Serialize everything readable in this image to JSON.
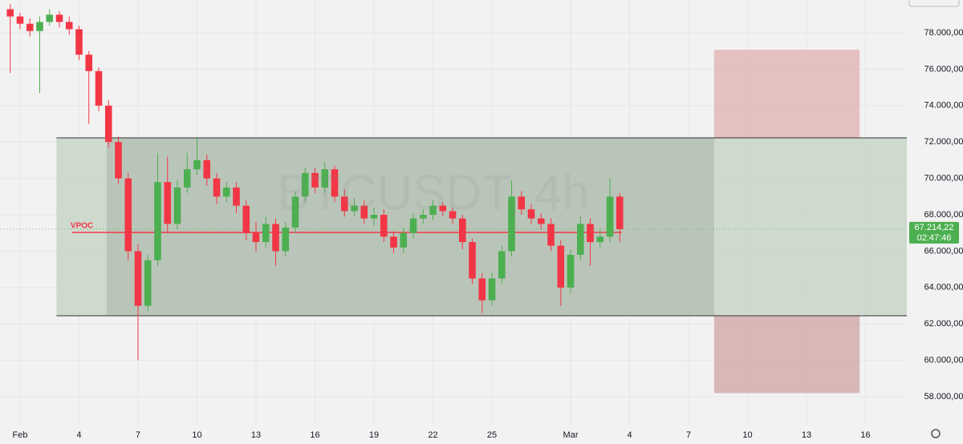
{
  "chart_data": {
    "type": "candlestick",
    "watermark": "BTCUSDT, 4h",
    "x": [
      -0.5,
      0,
      0.5,
      1,
      1.5,
      2,
      2.5,
      3,
      3.5,
      4,
      4.5,
      5,
      5.5,
      6,
      6.5,
      7,
      7.5,
      8,
      8.5,
      9,
      9.5,
      10,
      10.5,
      11,
      11.5,
      12,
      12.5,
      13,
      13.5,
      14,
      14.5,
      15,
      15.5,
      16,
      16.5,
      17,
      17.5,
      18,
      18.5,
      19,
      19.5,
      20,
      20.5,
      21,
      21.5,
      22,
      22.5,
      23,
      23.5,
      24,
      24.5,
      25,
      25.5,
      26,
      26.5,
      27,
      27.5,
      28,
      28.5,
      29,
      29.5,
      30,
      30.5
    ],
    "open": [
      79300,
      78900,
      78500,
      78100,
      78600,
      79000,
      78600,
      78200,
      76800,
      75900,
      74000,
      72000,
      70000,
      66000,
      63000,
      65500,
      69800,
      67500,
      69500,
      70500,
      71000,
      70000,
      69000,
      69500,
      68500,
      67000,
      66500,
      67500,
      66000,
      67300,
      69000,
      70300,
      69500,
      70500,
      69000,
      68200,
      68500,
      67800,
      68000,
      66800,
      66200,
      67000,
      67800,
      68000,
      68500,
      68200,
      67800,
      66500,
      64500,
      63300,
      64500,
      66000,
      69000,
      68300,
      67800,
      67500,
      66300,
      64000,
      65800,
      67500,
      66500,
      66800,
      69000
    ],
    "high": [
      79600,
      79100,
      78800,
      78900,
      79300,
      79200,
      78900,
      78400,
      77000,
      76100,
      74300,
      72300,
      70300,
      66400,
      65800,
      71400,
      71200,
      69900,
      71400,
      72200,
      71300,
      70300,
      69800,
      69800,
      68800,
      67600,
      67900,
      67800,
      67600,
      69300,
      70600,
      70600,
      70900,
      70700,
      69400,
      68900,
      68800,
      68400,
      68300,
      67100,
      67300,
      68100,
      68300,
      68800,
      68700,
      68400,
      68000,
      66700,
      64800,
      64800,
      66300,
      69900,
      69300,
      68600,
      68100,
      67800,
      66600,
      66100,
      67900,
      67800,
      67200,
      70000,
      69200
    ],
    "low": [
      75800,
      78200,
      77800,
      74700,
      78400,
      78300,
      77900,
      76500,
      73000,
      73700,
      71700,
      69700,
      65500,
      60000,
      62700,
      65200,
      67000,
      67200,
      69200,
      70200,
      69600,
      68600,
      68700,
      68100,
      66600,
      66000,
      66200,
      65200,
      65700,
      67000,
      68700,
      69200,
      69200,
      68700,
      67900,
      67900,
      67500,
      67400,
      66500,
      65900,
      65900,
      66700,
      67500,
      67700,
      67900,
      67500,
      66100,
      64200,
      62600,
      63000,
      64200,
      65700,
      68000,
      67500,
      67200,
      66000,
      63000,
      63700,
      65500,
      65200,
      66200,
      66500,
      66500
    ],
    "close": [
      78900,
      78500,
      78100,
      78600,
      79000,
      78600,
      78200,
      76800,
      75900,
      74000,
      72000,
      70000,
      66000,
      63000,
      65500,
      69800,
      67500,
      69500,
      70500,
      71000,
      70000,
      69000,
      69500,
      68500,
      67000,
      66500,
      67500,
      66000,
      67300,
      69000,
      70300,
      69500,
      70500,
      69000,
      68200,
      68500,
      67800,
      68000,
      66800,
      66200,
      67000,
      67800,
      68000,
      68500,
      68200,
      67800,
      66500,
      64500,
      63300,
      64500,
      66000,
      69000,
      68300,
      67800,
      67500,
      66300,
      64000,
      65800,
      67500,
      66500,
      66800,
      69000,
      67214
    ],
    "up_color": "#4caf50",
    "down_color": "#f23645",
    "xlim": [
      -1.02,
      45.1
    ],
    "ylim": [
      56460,
      79806
    ],
    "xticks": [
      {
        "value": 0,
        "label": "Feb"
      },
      {
        "value": 3,
        "label": "4"
      },
      {
        "value": 6,
        "label": "7"
      },
      {
        "value": 9,
        "label": "10"
      },
      {
        "value": 12,
        "label": "13"
      },
      {
        "value": 15,
        "label": "16"
      },
      {
        "value": 18,
        "label": "19"
      },
      {
        "value": 21,
        "label": "22"
      },
      {
        "value": 24,
        "label": "25"
      },
      {
        "value": 28,
        "label": "Mar"
      },
      {
        "value": 31,
        "label": "4"
      },
      {
        "value": 34,
        "label": "7"
      },
      {
        "value": 37,
        "label": "10"
      },
      {
        "value": 40,
        "label": "13"
      },
      {
        "value": 43,
        "label": "16"
      }
    ],
    "yticks": [
      {
        "value": 58000,
        "label": "58.000,00"
      },
      {
        "value": 60000,
        "label": "60.000,00"
      },
      {
        "value": 62000,
        "label": "62.000,00"
      },
      {
        "value": 64000,
        "label": "64.000,00"
      },
      {
        "value": 66000,
        "label": "66.000,00"
      },
      {
        "value": 68000,
        "label": "68.000,00"
      },
      {
        "value": 70000,
        "label": "70.000,00"
      },
      {
        "value": 72000,
        "label": "72.000,00"
      },
      {
        "value": 74000,
        "label": "74.000,00"
      },
      {
        "value": 76000,
        "label": "76.000,00"
      },
      {
        "value": 78000,
        "label": "78.000,00"
      }
    ],
    "grid": true,
    "zones": [
      {
        "x": [
          1.85,
          45.1
        ],
        "y": [
          62450,
          72230
        ],
        "color": "#c9d6c8"
      },
      {
        "x": [
          4.4,
          35.3
        ],
        "y": [
          62450,
          72230
        ],
        "color": "#b3bdb2"
      },
      {
        "x": [
          35.3,
          42.7
        ],
        "y": [
          72230,
          77070
        ],
        "color": "#e3b7b7"
      },
      {
        "x": [
          35.3,
          42.7
        ],
        "y": [
          58200,
          62450
        ],
        "color": "#d4adad"
      }
    ],
    "vpoc": {
      "label": "VPOC",
      "value": 67030,
      "x": [
        2.65,
        30.6
      ],
      "color": "#f23645"
    },
    "last_price": {
      "value": 67214.22,
      "label": "67.214,22",
      "countdown": "02:47:46",
      "color": "#4caf50"
    }
  }
}
